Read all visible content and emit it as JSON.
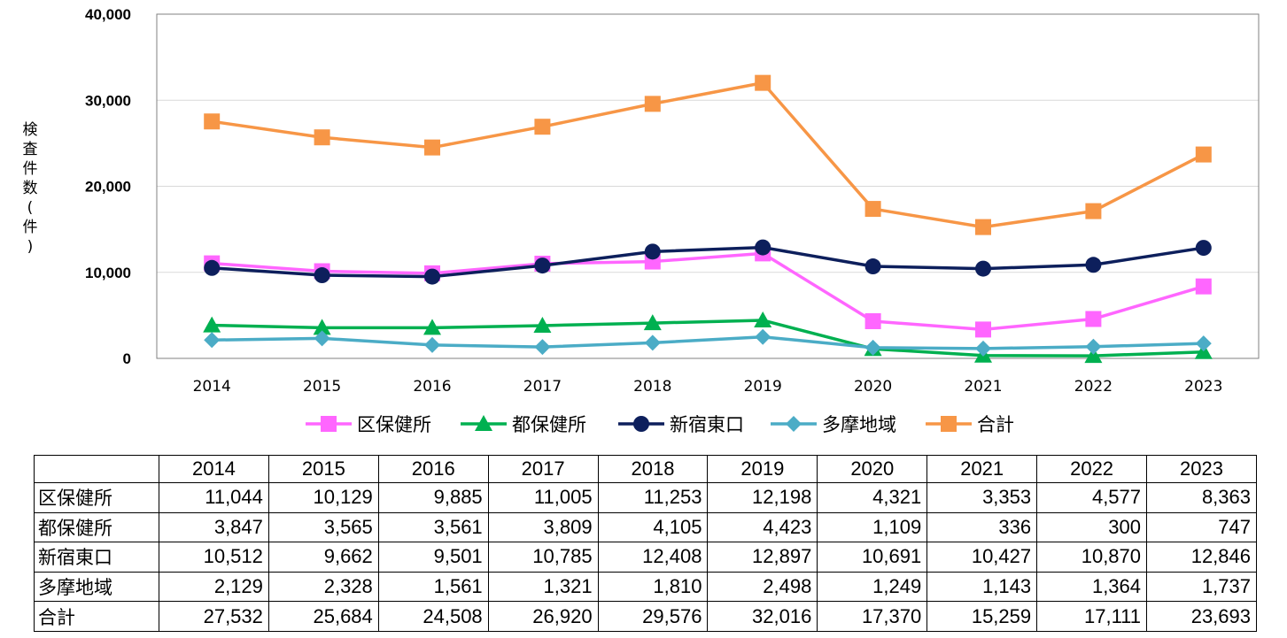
{
  "chart_data": {
    "type": "line",
    "title": "",
    "xlabel": "",
    "ylabel": "検査件数(件)",
    "ylim": [
      0,
      40000
    ],
    "yticks": [
      "0",
      "10,000",
      "20,000",
      "30,000",
      "40,000"
    ],
    "grid": true,
    "legend_position": "bottom",
    "categories": [
      "2014",
      "2015",
      "2016",
      "2017",
      "2018",
      "2019",
      "2020",
      "2021",
      "2022",
      "2023"
    ],
    "series": [
      {
        "name": "区保健所",
        "color": "#ff66ff",
        "marker": "square",
        "values": [
          11044,
          10129,
          9885,
          11005,
          11253,
          12198,
          4321,
          3353,
          4577,
          8363
        ]
      },
      {
        "name": "都保健所",
        "color": "#00b050",
        "marker": "triangle",
        "values": [
          3847,
          3565,
          3561,
          3809,
          4105,
          4423,
          1109,
          336,
          300,
          747
        ]
      },
      {
        "name": "新宿東口",
        "color": "#0d1f5c",
        "marker": "circle",
        "values": [
          10512,
          9662,
          9501,
          10785,
          12408,
          12897,
          10691,
          10427,
          10870,
          12846
        ]
      },
      {
        "name": "多摩地域",
        "color": "#4bacc6",
        "marker": "diamond",
        "values": [
          2129,
          2328,
          1561,
          1321,
          1810,
          2498,
          1249,
          1143,
          1364,
          1737
        ]
      },
      {
        "name": "合計",
        "color": "#f79646",
        "marker": "square",
        "values": [
          27532,
          25684,
          24508,
          26920,
          29576,
          32016,
          17370,
          15259,
          17111,
          23693
        ]
      }
    ]
  },
  "table": {
    "header": [
      "",
      "2014",
      "2015",
      "2016",
      "2017",
      "2018",
      "2019",
      "2020",
      "2021",
      "2022",
      "2023"
    ],
    "rows": [
      [
        "区保健所",
        "11,044",
        "10,129",
        "9,885",
        "11,005",
        "11,253",
        "12,198",
        "4,321",
        "3,353",
        "4,577",
        "8,363"
      ],
      [
        "都保健所",
        "3,847",
        "3,565",
        "3,561",
        "3,809",
        "4,105",
        "4,423",
        "1,109",
        "336",
        "300",
        "747"
      ],
      [
        "新宿東口",
        "10,512",
        "9,662",
        "9,501",
        "10,785",
        "12,408",
        "12,897",
        "10,691",
        "10,427",
        "10,870",
        "12,846"
      ],
      [
        "多摩地域",
        "2,129",
        "2,328",
        "1,561",
        "1,321",
        "1,810",
        "2,498",
        "1,249",
        "1,143",
        "1,364",
        "1,737"
      ],
      [
        "合計",
        "27,532",
        "25,684",
        "24,508",
        "26,920",
        "29,576",
        "32,016",
        "17,370",
        "15,259",
        "17,111",
        "23,693"
      ]
    ]
  }
}
